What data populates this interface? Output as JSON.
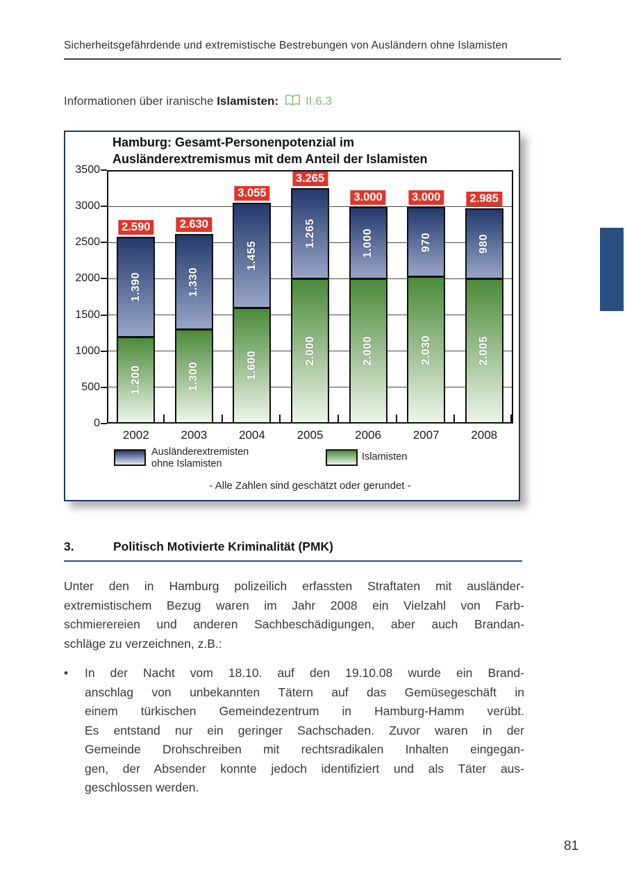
{
  "header": {
    "text": "Sicherheitsgefährdende und extremistische Bestrebungen von Ausländern ohne Islamisten"
  },
  "info": {
    "prefix": "Informationen über iranische",
    "bold": "Islamisten",
    "colon": ":",
    "ref": "II.6.3",
    "ref_color": "#76c06e",
    "icon": "open-book-icon"
  },
  "chart_data": {
    "type": "bar",
    "stacked": true,
    "title": "Hamburg: Gesamt-Personenpotenzial im Ausländerextremismus mit dem Anteil der Islamisten",
    "title_lines": [
      "Hamburg: Gesamt-Personenpotenzial im",
      "Ausländerextremismus mit dem Anteil der Islamisten"
    ],
    "categories": [
      "2002",
      "2003",
      "2004",
      "2005",
      "2006",
      "2007",
      "2008"
    ],
    "series": [
      {
        "name": "Islamisten",
        "values": [
          1200,
          1300,
          1600,
          2000,
          2000,
          2030,
          2005
        ],
        "value_labels": [
          "1.200",
          "1.300",
          "1.600",
          "2.000",
          "2.000",
          "2.030",
          "2.005"
        ],
        "color_top": "#4b8a39",
        "color_bottom": "#edf5e9"
      },
      {
        "name": "Ausländerextremisten ohne Islamisten",
        "values": [
          1390,
          1330,
          1455,
          1265,
          1000,
          970,
          980
        ],
        "value_labels": [
          "1.390",
          "1.330",
          "1.455",
          "1.265",
          "1.000",
          "970",
          "980"
        ],
        "color_top": "#233a6c",
        "color_bottom": "#97a5c7"
      }
    ],
    "totals": [
      2590,
      2630,
      3055,
      3265,
      3000,
      3000,
      2985
    ],
    "total_labels": [
      "2.590",
      "2.630",
      "3.055",
      "3.265",
      "3.000",
      "3.000",
      "2.985"
    ],
    "total_label_bg": "#e0352b",
    "ylim": [
      0,
      3500
    ],
    "ytick_step": 500,
    "yticks": [
      "0",
      "500",
      "1000",
      "1500",
      "2000",
      "2500",
      "3000",
      "3500"
    ],
    "grid": true,
    "legend_position": "bottom",
    "legend": [
      {
        "swatch": "blue-gradient",
        "lines": [
          "Ausländerextremisten",
          "ohne Islamisten"
        ]
      },
      {
        "swatch": "green-gradient",
        "lines": [
          "Islamisten"
        ]
      }
    ],
    "footnote": "- Alle Zahlen sind geschätzt oder gerundet -"
  },
  "section": {
    "number": "3.",
    "title": "Politisch Motivierte Kriminalität (PMK)"
  },
  "body": {
    "paragraph_lines": [
      "Unter den in Hamburg polizeilich erfassten Straftaten mit ausländer-",
      "extremistischem Bezug waren im Jahr 2008 ein Vielzahl von Farb-",
      "schmierereien und anderen Sachbeschädigungen, aber auch Brandan-",
      "schläge zu verzeichnen, z.B.:"
    ],
    "bullet": {
      "marker": "•",
      "lines": [
        "In der Nacht vom 18.10. auf den 19.10.08 wurde ein Brand-",
        "anschlag von unbekannten Tätern auf das Gemüsegeschäft in",
        "einem türkischen Gemeindezentrum in Hamburg-Hamm verübt.",
        "Es entstand nur ein geringer Sachschaden. Zuvor waren in der",
        "Gemeinde Drohschreiben mit rechtsradikalen Inhalten eingegan-",
        "gen, der Absender konnte jedoch identifiziert und als Täter aus-",
        "geschlossen werden."
      ]
    }
  },
  "accents": {
    "side_tab_blue": "#2a4e80",
    "heading_rule_blue": "#2e4d80"
  },
  "footer": {
    "page_number": "81"
  }
}
